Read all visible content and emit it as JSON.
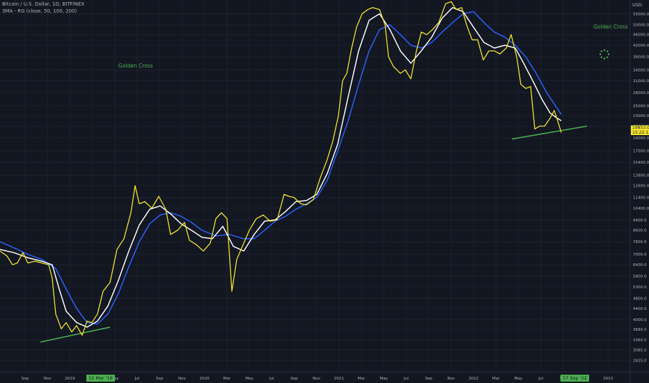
{
  "header": {
    "symbol": "Bitcoin / U.S. Dollar, 1D, BITFINEX",
    "indicator": "3MA - RG (close, 50, 100, 200)"
  },
  "annotations": {
    "left": "Golden Cross",
    "right": "Golden Cross"
  },
  "currency": "USD",
  "price_tag": {
    "price": "19853.0",
    "countdown": "15:22:13"
  },
  "date_tags": {
    "left": "12 Mar '19",
    "right": "17 Sep '22"
  },
  "colors": {
    "background": "#131722",
    "price": "#f5e72c",
    "ma_short": "#ffffff",
    "ma_long": "#2962ff",
    "trendline": "#4caf50",
    "axis_text": "#b2b5be"
  },
  "chart_data": {
    "type": "line",
    "scale": "log",
    "y_ticks": [
      2825,
      3085,
      3360,
      3680,
      4000,
      4400,
      4800,
      5300,
      5800,
      6400,
      7000,
      7800,
      8600,
      9400,
      10400,
      11400,
      12600,
      13800,
      15400,
      17000,
      19000,
      21000,
      23000,
      25000,
      28000,
      31000,
      34000,
      38000,
      42000,
      46000,
      50000,
      55000
    ],
    "ylim": [
      2650,
      59000
    ],
    "x_ticks": [
      "Sep",
      "Nov",
      "2019",
      "Mar",
      "May",
      "Jul",
      "Sep",
      "Nov",
      "2020",
      "Mar",
      "May",
      "Jul",
      "Sep",
      "Nov",
      "2021",
      "Mar",
      "May",
      "Jul",
      "Sep",
      "Nov",
      "2022",
      "Mar",
      "May",
      "Jul",
      "Sep",
      "Nov",
      "2023",
      "Mar"
    ],
    "series": [
      {
        "color": "#f5e72c",
        "points": [
          [
            0,
            7200
          ],
          [
            10,
            6900
          ],
          [
            18,
            6400
          ],
          [
            25,
            6500
          ],
          [
            33,
            7100
          ],
          [
            40,
            6500
          ],
          [
            50,
            6600
          ],
          [
            60,
            6500
          ],
          [
            70,
            6400
          ],
          [
            75,
            5700
          ],
          [
            80,
            4200
          ],
          [
            88,
            3700
          ],
          [
            95,
            3900
          ],
          [
            103,
            3600
          ],
          [
            110,
            3800
          ],
          [
            118,
            3500
          ],
          [
            125,
            3950
          ],
          [
            132,
            3900
          ],
          [
            140,
            4200
          ],
          [
            148,
            5100
          ],
          [
            158,
            5500
          ],
          [
            168,
            7300
          ],
          [
            178,
            8000
          ],
          [
            188,
            10000
          ],
          [
            194,
            12600
          ],
          [
            200,
            10800
          ],
          [
            208,
            11000
          ],
          [
            218,
            10400
          ],
          [
            228,
            11500
          ],
          [
            238,
            10300
          ],
          [
            245,
            8300
          ],
          [
            255,
            8600
          ],
          [
            265,
            9200
          ],
          [
            272,
            7900
          ],
          [
            282,
            7600
          ],
          [
            292,
            7200
          ],
          [
            302,
            7700
          ],
          [
            310,
            9500
          ],
          [
            318,
            10000
          ],
          [
            326,
            9500
          ],
          [
            333,
            5100
          ],
          [
            340,
            6700
          ],
          [
            350,
            7700
          ],
          [
            358,
            8600
          ],
          [
            368,
            9500
          ],
          [
            378,
            9800
          ],
          [
            388,
            9300
          ],
          [
            398,
            9400
          ],
          [
            408,
            11700
          ],
          [
            415,
            11500
          ],
          [
            422,
            11400
          ],
          [
            432,
            10800
          ],
          [
            440,
            10700
          ],
          [
            450,
            11200
          ],
          [
            460,
            13500
          ],
          [
            470,
            15800
          ],
          [
            478,
            18500
          ],
          [
            486,
            23000
          ],
          [
            492,
            31000
          ],
          [
            498,
            33000
          ],
          [
            505,
            41000
          ],
          [
            512,
            49000
          ],
          [
            520,
            55000
          ],
          [
            528,
            57000
          ],
          [
            535,
            58000
          ],
          [
            545,
            57000
          ],
          [
            553,
            50000
          ],
          [
            558,
            38000
          ],
          [
            565,
            35000
          ],
          [
            575,
            33000
          ],
          [
            582,
            34000
          ],
          [
            590,
            31500
          ],
          [
            598,
            40000
          ],
          [
            605,
            47000
          ],
          [
            613,
            46000
          ],
          [
            621,
            48000
          ],
          [
            630,
            51000
          ],
          [
            640,
            60000
          ],
          [
            648,
            61000
          ],
          [
            655,
            57000
          ],
          [
            663,
            58000
          ],
          [
            670,
            50000
          ],
          [
            678,
            44000
          ],
          [
            686,
            44000
          ],
          [
            694,
            37000
          ],
          [
            702,
            40000
          ],
          [
            710,
            40000
          ],
          [
            718,
            39000
          ],
          [
            727,
            41000
          ],
          [
            734,
            46000
          ],
          [
            742,
            38000
          ],
          [
            748,
            30000
          ],
          [
            755,
            29000
          ],
          [
            762,
            29500
          ],
          [
            768,
            20500
          ],
          [
            775,
            21000
          ],
          [
            782,
            21000
          ],
          [
            790,
            22500
          ],
          [
            796,
            24000
          ],
          [
            802,
            21500
          ],
          [
            806,
            19853
          ]
        ]
      },
      {
        "color": "#ffffff",
        "points": [
          [
            0,
            7300
          ],
          [
            20,
            7100
          ],
          [
            40,
            6800
          ],
          [
            60,
            6600
          ],
          [
            75,
            6400
          ],
          [
            85,
            5200
          ],
          [
            95,
            4300
          ],
          [
            110,
            3900
          ],
          [
            125,
            3750
          ],
          [
            140,
            3950
          ],
          [
            155,
            4500
          ],
          [
            170,
            5600
          ],
          [
            185,
            7200
          ],
          [
            200,
            9000
          ],
          [
            215,
            10300
          ],
          [
            230,
            10600
          ],
          [
            245,
            9900
          ],
          [
            260,
            9100
          ],
          [
            275,
            8600
          ],
          [
            290,
            8100
          ],
          [
            305,
            8000
          ],
          [
            320,
            8900
          ],
          [
            335,
            7500
          ],
          [
            350,
            7200
          ],
          [
            365,
            8300
          ],
          [
            380,
            9300
          ],
          [
            395,
            9400
          ],
          [
            410,
            10100
          ],
          [
            425,
            11000
          ],
          [
            440,
            11100
          ],
          [
            455,
            11700
          ],
          [
            470,
            14000
          ],
          [
            485,
            18000
          ],
          [
            500,
            27000
          ],
          [
            515,
            40000
          ],
          [
            530,
            52000
          ],
          [
            545,
            55000
          ],
          [
            560,
            48000
          ],
          [
            575,
            40000
          ],
          [
            590,
            36000
          ],
          [
            605,
            40000
          ],
          [
            620,
            45000
          ],
          [
            635,
            53000
          ],
          [
            650,
            58000
          ],
          [
            665,
            56000
          ],
          [
            680,
            49000
          ],
          [
            695,
            43000
          ],
          [
            710,
            41000
          ],
          [
            725,
            42000
          ],
          [
            740,
            41000
          ],
          [
            752,
            36000
          ],
          [
            765,
            31000
          ],
          [
            778,
            26500
          ],
          [
            790,
            23500
          ],
          [
            800,
            22500
          ],
          [
            806,
            22000
          ]
        ]
      },
      {
        "color": "#2962ff",
        "points": [
          [
            0,
            7800
          ],
          [
            20,
            7400
          ],
          [
            40,
            7000
          ],
          [
            60,
            6700
          ],
          [
            80,
            6200
          ],
          [
            95,
            5200
          ],
          [
            110,
            4400
          ],
          [
            125,
            3900
          ],
          [
            140,
            3850
          ],
          [
            155,
            4200
          ],
          [
            170,
            5000
          ],
          [
            185,
            6300
          ],
          [
            200,
            7800
          ],
          [
            215,
            9100
          ],
          [
            230,
            9800
          ],
          [
            245,
            10000
          ],
          [
            260,
            9700
          ],
          [
            275,
            9200
          ],
          [
            290,
            8600
          ],
          [
            310,
            8200
          ],
          [
            330,
            8300
          ],
          [
            350,
            8000
          ],
          [
            365,
            8000
          ],
          [
            380,
            8600
          ],
          [
            395,
            9300
          ],
          [
            410,
            9700
          ],
          [
            425,
            10300
          ],
          [
            440,
            10800
          ],
          [
            455,
            11400
          ],
          [
            470,
            13200
          ],
          [
            485,
            17000
          ],
          [
            500,
            22000
          ],
          [
            515,
            30000
          ],
          [
            530,
            40000
          ],
          [
            545,
            48000
          ],
          [
            560,
            50000
          ],
          [
            575,
            46000
          ],
          [
            590,
            42000
          ],
          [
            605,
            41000
          ],
          [
            620,
            43000
          ],
          [
            635,
            47000
          ],
          [
            650,
            51000
          ],
          [
            665,
            55000
          ],
          [
            680,
            56000
          ],
          [
            695,
            51000
          ],
          [
            710,
            47000
          ],
          [
            725,
            45000
          ],
          [
            740,
            42000
          ],
          [
            755,
            38000
          ],
          [
            770,
            33000
          ],
          [
            785,
            28000
          ],
          [
            800,
            24500
          ],
          [
            806,
            23200
          ]
        ]
      }
    ],
    "trendlines": [
      {
        "color": "#4caf50",
        "from": [
          58,
          3300
        ],
        "to": [
          158,
          3750
        ]
      },
      {
        "color": "#4caf50",
        "from": [
          735,
          18800
        ],
        "to": [
          843,
          21000
        ]
      }
    ]
  }
}
